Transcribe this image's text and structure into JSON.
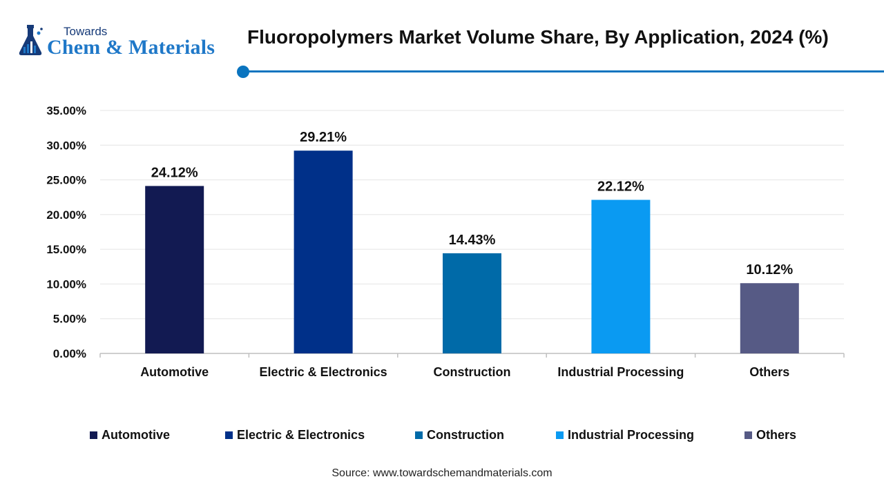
{
  "logo": {
    "top_text": "Towards",
    "main_text": "Chem & Materials",
    "icon": "flask-icon",
    "colors": {
      "dark": "#163a78",
      "accent": "#1f78c8"
    }
  },
  "header": {
    "title": "Fluoropolymers Market Volume Share, By Application, 2024 (%)",
    "rule_color": "#0a74bf"
  },
  "chart_data": {
    "type": "bar",
    "categories": [
      "Automotive",
      "Electric & Electronics",
      "Construction",
      "Industrial Processing",
      "Others"
    ],
    "values": [
      24.12,
      29.21,
      14.43,
      22.12,
      10.12
    ],
    "data_labels": [
      "24.12%",
      "29.21%",
      "14.43%",
      "22.12%",
      "10.12%"
    ],
    "colors": [
      "#121a52",
      "#003089",
      "#006aa8",
      "#0a9af2",
      "#565a85"
    ],
    "title": "Fluoropolymers Market Volume Share, By Application, 2024 (%)",
    "xlabel": "",
    "ylabel": "",
    "ylim": [
      0,
      35
    ],
    "yticks": [
      0,
      5,
      10,
      15,
      20,
      25,
      30,
      35
    ],
    "ytick_labels": [
      "0.00%",
      "5.00%",
      "10.00%",
      "15.00%",
      "20.00%",
      "25.00%",
      "30.00%",
      "35.00%"
    ],
    "grid": true,
    "legend_position": "bottom"
  },
  "legend": {
    "items": [
      {
        "label": "Automotive",
        "color": "#121a52"
      },
      {
        "label": "Electric & Electronics",
        "color": "#003089"
      },
      {
        "label": "Construction",
        "color": "#006aa8"
      },
      {
        "label": "Industrial Processing",
        "color": "#0a9af2"
      },
      {
        "label": "Others",
        "color": "#565a85"
      }
    ]
  },
  "footer": {
    "source": "Source: www.towardschemandmaterials.com"
  }
}
